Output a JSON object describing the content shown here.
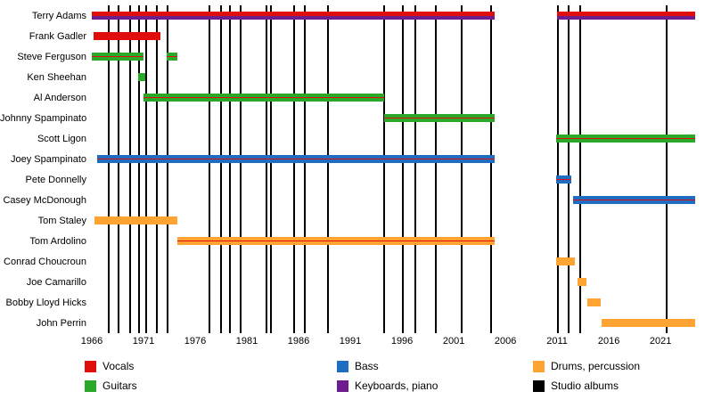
{
  "chart_data": {
    "type": "timeline",
    "x_axis": {
      "start_year": 1966,
      "end_year": 2024.35,
      "tick_years": [
        1966,
        1971,
        1976,
        1981,
        1986,
        1991,
        1996,
        2001,
        2006,
        2011,
        2016,
        2021
      ]
    },
    "colors": {
      "vocals": "#e00d0d",
      "guitars": "#2aa82a",
      "bass": "#1f6dc1",
      "keyboards": "#6d1d8e",
      "drums": "#ffa332",
      "albums": "#000000"
    },
    "members": [
      {
        "name": "Terry Adams",
        "segments": [
          {
            "start": 1966.0,
            "end": 2005.0,
            "stripes": [
              [
                "vocals",
                1
              ],
              [
                "keyboards",
                1
              ]
            ]
          },
          {
            "start": 2011.0,
            "end": 2024.35,
            "stripes": [
              [
                "vocals",
                1
              ],
              [
                "keyboards",
                1
              ]
            ]
          }
        ]
      },
      {
        "name": "Frank Gadler",
        "segments": [
          {
            "start": 1966.2,
            "end": 1972.6,
            "stripes": [
              [
                "vocals",
                1
              ]
            ]
          }
        ]
      },
      {
        "name": "Steve Ferguson",
        "segments": [
          {
            "start": 1966.0,
            "end": 1971.0,
            "stripes": [
              [
                "guitars",
                2
              ],
              [
                "vocals",
                1
              ],
              [
                "guitars",
                2
              ]
            ]
          },
          {
            "start": 1973.2,
            "end": 1974.3,
            "stripes": [
              [
                "guitars",
                2
              ],
              [
                "vocals",
                1
              ],
              [
                "guitars",
                2
              ]
            ]
          }
        ]
      },
      {
        "name": "Ken Sheehan",
        "segments": [
          {
            "start": 1970.5,
            "end": 1971.2,
            "stripes": [
              [
                "guitars",
                1
              ]
            ]
          }
        ]
      },
      {
        "name": "Al Anderson",
        "segments": [
          {
            "start": 1971.0,
            "end": 1994.3,
            "stripes": [
              [
                "guitars",
                2
              ],
              [
                "vocals",
                1
              ],
              [
                "guitars",
                2
              ]
            ]
          }
        ]
      },
      {
        "name": "Johnny Spampinato",
        "segments": [
          {
            "start": 1994.3,
            "end": 2005.0,
            "stripes": [
              [
                "guitars",
                2
              ],
              [
                "vocals",
                1
              ],
              [
                "guitars",
                2
              ]
            ]
          }
        ]
      },
      {
        "name": "Scott Ligon",
        "segments": [
          {
            "start": 2010.9,
            "end": 2024.35,
            "stripes": [
              [
                "guitars",
                2
              ],
              [
                "vocals",
                1
              ],
              [
                "guitars",
                2
              ]
            ]
          }
        ]
      },
      {
        "name": "Joey Spampinato",
        "segments": [
          {
            "start": 1966.5,
            "end": 2005.0,
            "stripes": [
              [
                "bass",
                2
              ],
              [
                "vocals",
                1
              ],
              [
                "bass",
                2
              ]
            ]
          }
        ]
      },
      {
        "name": "Pete Donnelly",
        "segments": [
          {
            "start": 2010.9,
            "end": 2012.4,
            "stripes": [
              [
                "bass",
                2
              ],
              [
                "vocals",
                1
              ],
              [
                "bass",
                2
              ]
            ]
          }
        ]
      },
      {
        "name": "Casey McDonough",
        "segments": [
          {
            "start": 2012.5,
            "end": 2024.35,
            "stripes": [
              [
                "bass",
                2
              ],
              [
                "vocals",
                1
              ],
              [
                "bass",
                2
              ]
            ]
          }
        ]
      },
      {
        "name": "Tom Staley",
        "segments": [
          {
            "start": 1966.3,
            "end": 1974.3,
            "stripes": [
              [
                "drums",
                1
              ]
            ]
          }
        ]
      },
      {
        "name": "Tom Ardolino",
        "segments": [
          {
            "start": 1974.3,
            "end": 2005.0,
            "stripes": [
              [
                "drums",
                2
              ],
              [
                "vocals",
                1
              ],
              [
                "drums",
                2
              ]
            ]
          }
        ]
      },
      {
        "name": "Conrad Choucroun",
        "segments": [
          {
            "start": 2010.9,
            "end": 2012.7,
            "stripes": [
              [
                "drums",
                1
              ]
            ]
          }
        ]
      },
      {
        "name": "Joe Camarillo",
        "segments": [
          {
            "start": 2013.0,
            "end": 2013.8,
            "stripes": [
              [
                "drums",
                1
              ]
            ]
          }
        ]
      },
      {
        "name": "Bobby Lloyd Hicks",
        "segments": [
          {
            "start": 2013.9,
            "end": 2015.2,
            "stripes": [
              [
                "drums",
                1
              ]
            ]
          }
        ]
      },
      {
        "name": "John Perrin",
        "segments": [
          {
            "start": 2015.3,
            "end": 2024.35,
            "stripes": [
              [
                "drums",
                1
              ]
            ]
          }
        ]
      }
    ],
    "album_years": [
      1967.6,
      1968.6,
      1969.7,
      1970.6,
      1971.3,
      1972.3,
      1973.3,
      1977.4,
      1978.5,
      1979.4,
      1980.4,
      1982.9,
      1983.3,
      1985.6,
      1986.6,
      1988.8,
      1994.3,
      1996.1,
      1997.3,
      1999.3,
      2001.8,
      2004.6,
      2011.1,
      2012.1,
      2013.2,
      2021.6
    ],
    "legend": {
      "columns": [
        {
          "items": [
            {
              "label": "Vocals",
              "color_key": "vocals"
            },
            {
              "label": "Guitars",
              "color_key": "guitars"
            }
          ]
        },
        {
          "items": [
            {
              "label": "Bass",
              "color_key": "bass"
            },
            {
              "label": "Keyboards, piano",
              "color_key": "keyboards"
            }
          ]
        },
        {
          "items": [
            {
              "label": "Drums, percussion",
              "color_key": "drums"
            },
            {
              "label": "Studio albums",
              "color_key": "albums"
            }
          ]
        }
      ]
    }
  }
}
